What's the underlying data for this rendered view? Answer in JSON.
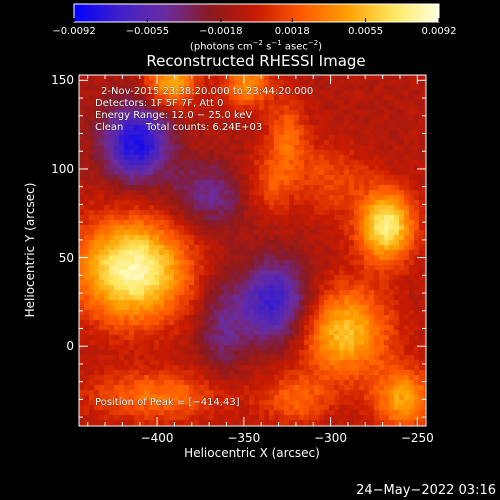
{
  "chart_data": {
    "type": "heatmap",
    "title": "Reconstructed RHESSI Image",
    "xlabel": "Heliocentric X (arcsec)",
    "ylabel": "Heliocentric Y (arcsec)",
    "xlim": [
      -445,
      -245
    ],
    "ylim": [
      -45,
      153
    ],
    "x_ticks": [
      -400,
      -350,
      -300,
      -250
    ],
    "y_ticks": [
      0,
      50,
      100,
      150
    ],
    "x_tick_labels": [
      "−400",
      "−350",
      "−300",
      "−250"
    ],
    "y_tick_labels": [
      "0",
      "50",
      "100",
      "150"
    ],
    "colorbar": {
      "min": -0.0092,
      "max": 0.0092,
      "tick_values": [
        -0.0092,
        -0.0055,
        -0.0018,
        0.0018,
        0.0055,
        0.0092
      ],
      "tick_labels": [
        "−0.0092",
        "−0.0055",
        "−0.0018",
        "0.0018",
        "0.0055",
        "0.0092"
      ],
      "unit_parts": [
        "(photons cm",
        "−2",
        " s",
        "−1",
        " asec",
        "−2",
        ")"
      ],
      "colormap": [
        "#0000ff",
        "#4020c8",
        "#6a2ca0",
        "#8a1a20",
        "#c81a00",
        "#ff5a00",
        "#ffa000",
        "#ffe860",
        "#ffffe0"
      ]
    },
    "annotations": {
      "time_range": "2-Nov-2015 23:38:20.000 to 23:44:20.000",
      "detectors": "Detectors: 1F 5F 7F, Att 0",
      "energy_range": "Energy Range: 12.0 − 25.0 keV",
      "clean": "Clean",
      "total_counts": "Total counts: 6.24E+03",
      "peak_position": "Position of Peak = [−414,43]"
    },
    "sources": [
      {
        "x": -414,
        "y": 43,
        "peak": 0.0092,
        "sx": 22,
        "sy": 20
      },
      {
        "x": -268,
        "y": 68,
        "peak": 0.0085,
        "sx": 11,
        "sy": 14
      },
      {
        "x": -392,
        "y": 148,
        "peak": 0.0062,
        "sx": 10,
        "sy": 9
      },
      {
        "x": -348,
        "y": 148,
        "peak": 0.0048,
        "sx": 10,
        "sy": 9
      },
      {
        "x": -292,
        "y": 8,
        "peak": 0.0065,
        "sx": 18,
        "sy": 18
      },
      {
        "x": -258,
        "y": -30,
        "peak": 0.0055,
        "sx": 12,
        "sy": 12
      },
      {
        "x": -400,
        "y": -28,
        "peak": 0.0038,
        "sx": 28,
        "sy": 10
      },
      {
        "x": -320,
        "y": -30,
        "peak": 0.0032,
        "sx": 14,
        "sy": 10
      },
      {
        "x": -325,
        "y": 118,
        "peak": 0.0034,
        "sx": 8,
        "sy": 14
      },
      {
        "x": -335,
        "y": 92,
        "peak": 0.0028,
        "sx": 10,
        "sy": 12
      },
      {
        "x": -300,
        "y": 95,
        "peak": 0.0025,
        "sx": 14,
        "sy": 14
      }
    ],
    "negative_regions": [
      {
        "x": -412,
        "y": 115,
        "depth": 0.0075,
        "sx": 14,
        "sy": 16
      },
      {
        "x": -332,
        "y": 25,
        "depth": 0.0065,
        "sx": 15,
        "sy": 17
      },
      {
        "x": -370,
        "y": 85,
        "depth": 0.0035,
        "sx": 16,
        "sy": 14
      },
      {
        "x": -363,
        "y": 10,
        "depth": 0.003,
        "sx": 10,
        "sy": 20
      }
    ]
  },
  "footer": {
    "timestamp": "24−May−2022 03:16"
  }
}
